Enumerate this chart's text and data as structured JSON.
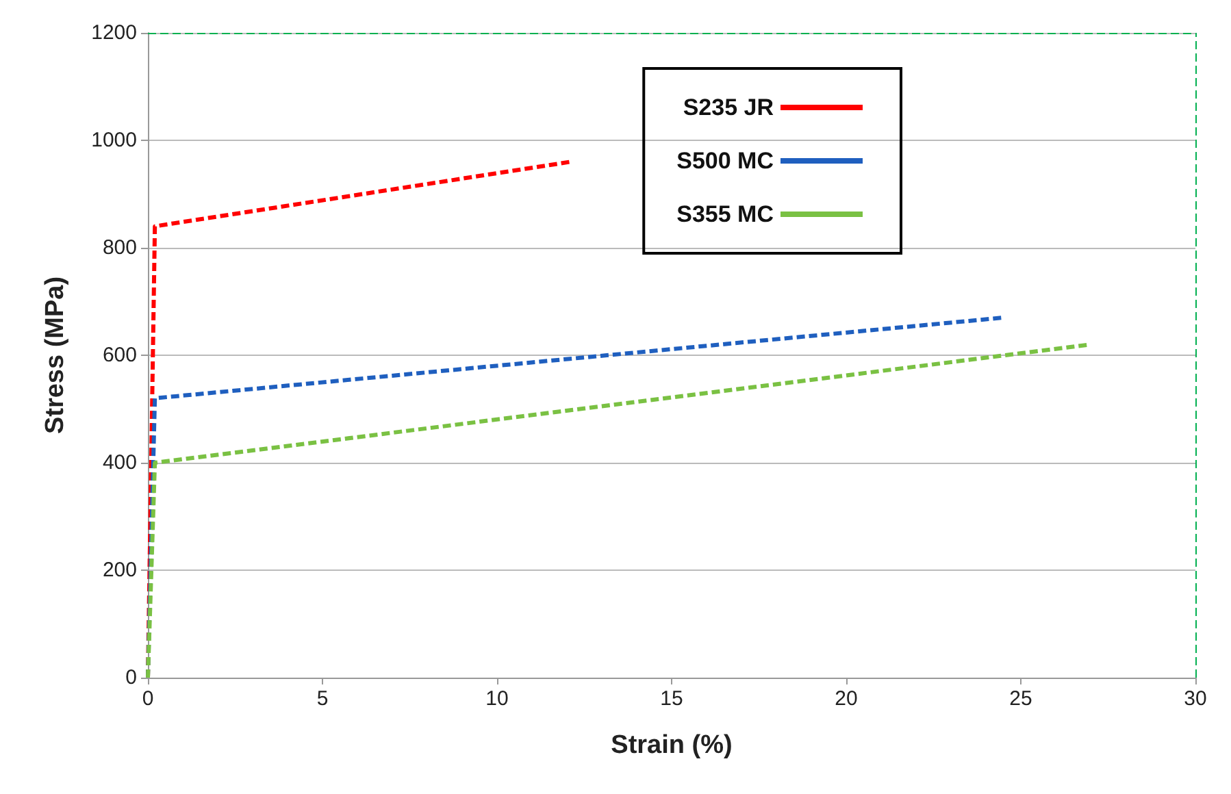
{
  "chart_data": {
    "type": "line",
    "xlabel": "Strain (%)",
    "ylabel": "Stress (MPa)",
    "xlim": [
      0,
      30
    ],
    "xticks": [
      0,
      5,
      10,
      15,
      20,
      25,
      30
    ],
    "ylim": [
      0,
      1200
    ],
    "yticks": [
      0,
      200,
      400,
      600,
      800,
      1000,
      1200
    ],
    "grid": "y",
    "legend": "top right",
    "marker": "none",
    "ref_lines": [
      {
        "axis": "y",
        "value": 1200,
        "color": "#00b050",
        "line_style": "dashed"
      },
      {
        "axis": "x",
        "value": 30,
        "color": "#00b050",
        "line_style": "dashed"
      }
    ],
    "series": [
      {
        "name": "S235 JR",
        "color": "#ff0000",
        "line_style": "dashed",
        "x": [
          0,
          0.2,
          12.1
        ],
        "values": [
          0,
          840,
          960
        ]
      },
      {
        "name": "S500 MC",
        "color": "#1f5fbf",
        "line_style": "dashed",
        "x": [
          0,
          0.2,
          24.5
        ],
        "values": [
          0,
          520,
          670
        ]
      },
      {
        "name": "S355 MC",
        "color": "#7ac143",
        "line_style": "dashed",
        "x": [
          0,
          0.2,
          27
        ],
        "values": [
          0,
          400,
          620
        ]
      }
    ]
  }
}
